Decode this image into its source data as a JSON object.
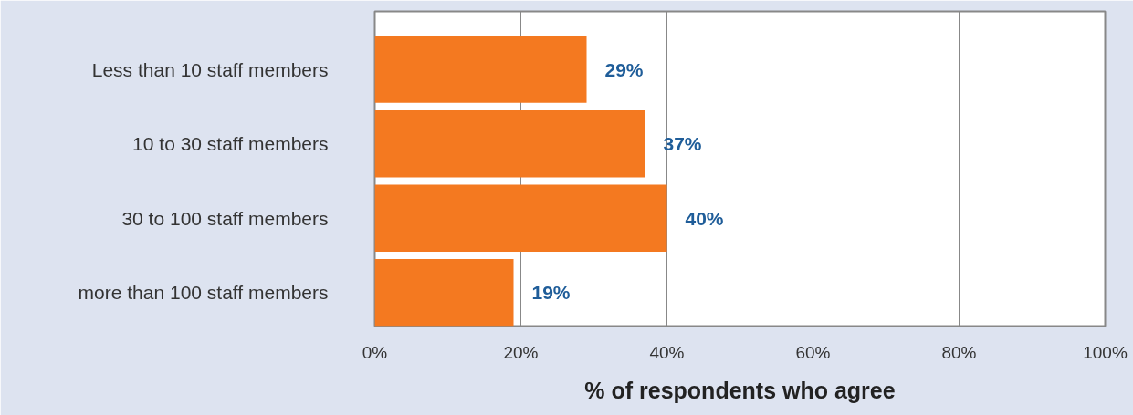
{
  "chart_data": {
    "type": "bar",
    "orientation": "horizontal",
    "categories": [
      "Less than 10 staff members",
      "10 to 30 staff members",
      "30 to 100 staff members",
      "more than 100 staff members"
    ],
    "values": [
      29,
      37,
      40,
      19
    ],
    "color": "#f47920",
    "value_labels": [
      "29%",
      "37%",
      "40%",
      "19%"
    ],
    "xlabel": "% of respondents who agree",
    "xlim": [
      0,
      100
    ],
    "xticks": [
      {
        "value": 0,
        "label": "0%"
      },
      {
        "value": 20,
        "label": "20%"
      },
      {
        "value": 40,
        "label": "40%"
      },
      {
        "value": 60,
        "label": "60%"
      },
      {
        "value": 80,
        "label": "80%"
      },
      {
        "value": 100,
        "label": "100%"
      }
    ],
    "grid": "x"
  }
}
